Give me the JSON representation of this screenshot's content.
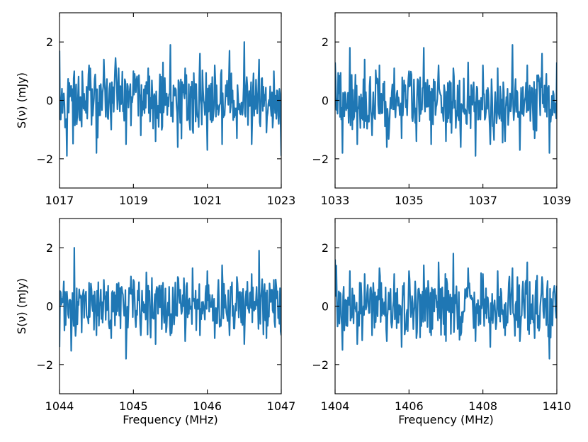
{
  "figure": {
    "line_color": "#1f77b4",
    "axes": [
      {
        "ylabel": "S(ν) (mJy)",
        "xlabel": "",
        "xlim": [
          1017,
          1023
        ],
        "ylim": [
          -3,
          3
        ],
        "xticks": [
          "1017",
          "1019",
          "1021",
          "1023"
        ],
        "yticks": [
          "−2",
          "0",
          "2"
        ]
      },
      {
        "ylabel": "",
        "xlabel": "",
        "xlim": [
          1033,
          1039
        ],
        "ylim": [
          -3,
          3
        ],
        "xticks": [
          "1033",
          "1035",
          "1037",
          "1039"
        ],
        "yticks": [
          "−2",
          "0",
          "2"
        ]
      },
      {
        "ylabel": "S(ν) (mJy)",
        "xlabel": "Frequency (MHz)",
        "xlim": [
          1044,
          1047
        ],
        "ylim": [
          -3,
          3
        ],
        "xticks": [
          "1044",
          "1045",
          "1046",
          "1047"
        ],
        "yticks": [
          "−2",
          "0",
          "2"
        ]
      },
      {
        "ylabel": "",
        "xlabel": "Frequency (MHz)",
        "xlim": [
          1404,
          1410
        ],
        "ylim": [
          -3,
          3
        ],
        "xticks": [
          "1404",
          "1406",
          "1408",
          "1410"
        ],
        "yticks": [
          "−2",
          "0",
          "2"
        ]
      }
    ]
  },
  "chart_data": [
    {
      "type": "line",
      "xlabel": "",
      "ylabel": "S(ν) (mJy)",
      "xlim": [
        1017,
        1023
      ],
      "ylim": [
        -3,
        3
      ],
      "grid": false,
      "series": [
        {
          "x": [
            1017.0,
            1017.2,
            1017.4,
            1017.6,
            1017.8,
            1018.0,
            1018.2,
            1018.4,
            1018.6,
            1018.8,
            1019.0,
            1019.2,
            1019.4,
            1019.6,
            1019.8,
            1020.0,
            1020.2,
            1020.4,
            1020.6,
            1020.8,
            1021.0,
            1021.2,
            1021.4,
            1021.6,
            1021.8,
            1022.0,
            1022.2,
            1022.4,
            1022.6,
            1022.8,
            1023.0
          ],
          "y": [
            1.7,
            -1.9,
            1.0,
            -0.9,
            1.2,
            -1.8,
            1.4,
            -1.0,
            1.1,
            -1.5,
            1.0,
            -1.2,
            1.1,
            -1.4,
            1.3,
            1.9,
            -1.6,
            1.1,
            -1.0,
            1.6,
            -1.7,
            1.2,
            -1.5,
            1.7,
            -1.3,
            2.0,
            -1.5,
            1.4,
            -1.1,
            1.0,
            -1.9
          ]
        }
      ]
    },
    {
      "type": "line",
      "xlabel": "",
      "ylabel": "",
      "xlim": [
        1033,
        1039
      ],
      "ylim": [
        -3,
        3
      ],
      "grid": false,
      "series": [
        {
          "x": [
            1033.0,
            1033.2,
            1033.4,
            1033.6,
            1033.8,
            1034.0,
            1034.2,
            1034.4,
            1034.6,
            1034.8,
            1035.0,
            1035.2,
            1035.4,
            1035.6,
            1035.8,
            1036.0,
            1036.2,
            1036.4,
            1036.6,
            1036.8,
            1037.0,
            1037.2,
            1037.4,
            1037.6,
            1037.8,
            1038.0,
            1038.2,
            1038.4,
            1038.6,
            1038.8,
            1039.0
          ],
          "y": [
            1.3,
            -1.8,
            1.8,
            -1.5,
            1.4,
            -1.2,
            1.2,
            -1.6,
            1.1,
            -1.3,
            1.0,
            -1.4,
            1.8,
            -1.5,
            1.2,
            -1.4,
            1.1,
            -1.6,
            1.3,
            -1.9,
            1.2,
            -1.5,
            1.1,
            -1.4,
            1.9,
            -1.7,
            1.2,
            -1.3,
            1.6,
            -1.8,
            1.3
          ]
        }
      ]
    },
    {
      "type": "line",
      "xlabel": "Frequency (MHz)",
      "ylabel": "S(ν) (mJy)",
      "xlim": [
        1044,
        1047
      ],
      "ylim": [
        -3,
        3
      ],
      "grid": false,
      "series": [
        {
          "x": [
            1044.0,
            1044.1,
            1044.2,
            1044.3,
            1044.4,
            1044.5,
            1044.6,
            1044.7,
            1044.8,
            1044.9,
            1045.0,
            1045.1,
            1045.2,
            1045.3,
            1045.4,
            1045.5,
            1045.6,
            1045.7,
            1045.8,
            1045.9,
            1046.0,
            1046.1,
            1046.2,
            1046.3,
            1046.4,
            1046.5,
            1046.6,
            1046.7,
            1046.8,
            1046.9,
            1047.0
          ],
          "y": [
            -1.4,
            0.5,
            2.0,
            -0.9,
            0.8,
            -1.0,
            0.9,
            -1.1,
            0.8,
            -1.8,
            0.9,
            -1.0,
            0.7,
            -1.3,
            0.8,
            -1.0,
            1.0,
            -1.2,
            1.3,
            -1.0,
            1.2,
            -1.1,
            1.4,
            -1.0,
            1.0,
            -1.3,
            1.1,
            1.9,
            -1.1,
            0.9,
            -1.0
          ]
        }
      ]
    },
    {
      "type": "line",
      "xlabel": "Frequency (MHz)",
      "ylabel": "",
      "xlim": [
        1404,
        1410
      ],
      "ylim": [
        -3,
        3
      ],
      "grid": false,
      "series": [
        {
          "x": [
            1404.0,
            1404.2,
            1404.4,
            1404.6,
            1404.8,
            1405.0,
            1405.2,
            1405.4,
            1405.6,
            1405.8,
            1406.0,
            1406.2,
            1406.4,
            1406.6,
            1406.8,
            1407.0,
            1407.2,
            1407.4,
            1407.6,
            1407.8,
            1408.0,
            1408.2,
            1408.4,
            1408.6,
            1408.8,
            1409.0,
            1409.2,
            1409.4,
            1409.6,
            1409.8,
            1410.0
          ],
          "y": [
            1.6,
            -1.5,
            1.2,
            -1.3,
            1.1,
            -1.0,
            1.3,
            -1.2,
            1.1,
            -1.4,
            1.2,
            -1.1,
            1.4,
            -1.0,
            1.5,
            -1.2,
            1.8,
            -1.0,
            1.3,
            -1.2,
            1.1,
            -1.4,
            1.2,
            -1.0,
            1.3,
            -1.2,
            1.5,
            -1.1,
            1.0,
            -1.8,
            0.7
          ]
        }
      ]
    }
  ]
}
